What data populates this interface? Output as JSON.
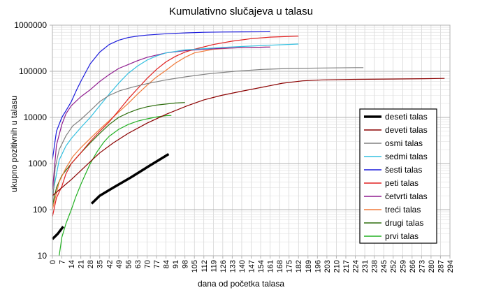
{
  "chart_data": {
    "type": "line",
    "title": "Kumulativno slučajeva u talasu",
    "xlabel": "dana od početka talasa",
    "ylabel": "ukupno pozitivnih u talasu",
    "x_ticks": [
      "0",
      "7",
      "14",
      "21",
      "28",
      "35",
      "42",
      "49",
      "56",
      "63",
      "70",
      "77",
      "84",
      "91",
      "98",
      "105",
      "112",
      "119",
      "126",
      "133",
      "140",
      "147",
      "154",
      "161",
      "168",
      "175",
      "182",
      "189",
      "196",
      "203",
      "210",
      "217",
      "224",
      "231",
      "238",
      "245",
      "252",
      "259",
      "266",
      "273",
      "280",
      "287",
      "294"
    ],
    "xlim": [
      0,
      294
    ],
    "y_scale": "log",
    "ylim": [
      10,
      1000000
    ],
    "y_ticks": [
      "10",
      "100",
      "1000",
      "10000",
      "100000",
      "1000000"
    ],
    "grid": true,
    "legend_position": "right",
    "series": [
      {
        "name": "deseti talas",
        "color": "#000000",
        "width": 3.5,
        "segments": [
          [
            [
              0,
              23
            ],
            [
              4,
              30
            ],
            [
              8,
              43
            ]
          ],
          [
            [
              29,
              135
            ],
            [
              35,
              200
            ],
            [
              45,
              300
            ],
            [
              58,
              500
            ],
            [
              72,
              900
            ],
            [
              86,
              1600
            ]
          ]
        ]
      },
      {
        "name": "deveti talas",
        "color": "#8b0000",
        "width": 1.2,
        "segments": [
          [
            [
              0,
              200
            ],
            [
              7,
              300
            ],
            [
              14,
              450
            ],
            [
              21,
              700
            ],
            [
              28,
              1100
            ],
            [
              35,
              1700
            ],
            [
              45,
              2800
            ],
            [
              56,
              4500
            ],
            [
              70,
              7500
            ],
            [
              85,
              12000
            ],
            [
              100,
              18000
            ],
            [
              112,
              24000
            ],
            [
              125,
              30000
            ],
            [
              140,
              37000
            ],
            [
              155,
              45000
            ],
            [
              170,
              55000
            ],
            [
              185,
              62000
            ],
            [
              200,
              65000
            ],
            [
              225,
              67000
            ],
            [
              250,
              68000
            ],
            [
              275,
              69000
            ],
            [
              290,
              70000
            ]
          ]
        ]
      },
      {
        "name": "osmi talas",
        "color": "#808080",
        "width": 1.2,
        "segments": [
          [
            [
              0,
              120
            ],
            [
              2,
              800
            ],
            [
              5,
              2000
            ],
            [
              10,
              4000
            ],
            [
              15,
              6500
            ],
            [
              21,
              9000
            ],
            [
              28,
              14000
            ],
            [
              35,
              22000
            ],
            [
              42,
              30000
            ],
            [
              50,
              38000
            ],
            [
              60,
              46000
            ],
            [
              70,
              54000
            ],
            [
              84,
              65000
            ],
            [
              100,
              77000
            ],
            [
              115,
              88000
            ],
            [
              135,
              100000
            ],
            [
              155,
              110000
            ],
            [
              175,
              115000
            ],
            [
              200,
              118000
            ],
            [
              225,
              120000
            ],
            [
              230,
              120000
            ]
          ]
        ]
      },
      {
        "name": "sedmi talas",
        "color": "#33c0e0",
        "width": 1.2,
        "segments": [
          [
            [
              0,
              200
            ],
            [
              5,
              1200
            ],
            [
              10,
              2400
            ],
            [
              14,
              3500
            ],
            [
              21,
              6000
            ],
            [
              28,
              10000
            ],
            [
              35,
              18000
            ],
            [
              42,
              32000
            ],
            [
              49,
              55000
            ],
            [
              56,
              90000
            ],
            [
              63,
              130000
            ],
            [
              70,
              175000
            ],
            [
              77,
              215000
            ],
            [
              84,
              250000
            ],
            [
              98,
              290000
            ],
            [
              112,
              310000
            ],
            [
              126,
              330000
            ],
            [
              140,
              345000
            ],
            [
              154,
              360000
            ],
            [
              168,
              375000
            ],
            [
              182,
              390000
            ]
          ]
        ]
      },
      {
        "name": "šesti talas",
        "color": "#1c1cdc",
        "width": 1.2,
        "segments": [
          [
            [
              0,
              1200
            ],
            [
              3,
              5000
            ],
            [
              7,
              10000
            ],
            [
              10,
              14000
            ],
            [
              14,
              22000
            ],
            [
              18,
              40000
            ],
            [
              21,
              60000
            ],
            [
              25,
              100000
            ],
            [
              28,
              145000
            ],
            [
              35,
              260000
            ],
            [
              42,
              380000
            ],
            [
              49,
              470000
            ],
            [
              56,
              540000
            ],
            [
              63,
              580000
            ],
            [
              70,
              610000
            ],
            [
              84,
              650000
            ],
            [
              98,
              680000
            ],
            [
              112,
              700000
            ],
            [
              126,
              710000
            ],
            [
              140,
              715000
            ],
            [
              161,
              720000
            ]
          ]
        ]
      },
      {
        "name": "peti talas",
        "color": "#e02020",
        "width": 1.2,
        "segments": [
          [
            [
              0,
              70
            ],
            [
              3,
              180
            ],
            [
              7,
              320
            ],
            [
              10,
              600
            ],
            [
              14,
              1000
            ],
            [
              21,
              1700
            ],
            [
              28,
              3000
            ],
            [
              35,
              5000
            ],
            [
              42,
              8000
            ],
            [
              49,
              14000
            ],
            [
              56,
              25000
            ],
            [
              63,
              42000
            ],
            [
              70,
              70000
            ],
            [
              77,
              110000
            ],
            [
              84,
              160000
            ],
            [
              91,
              210000
            ],
            [
              98,
              260000
            ],
            [
              105,
              300000
            ],
            [
              119,
              380000
            ],
            [
              133,
              450000
            ],
            [
              147,
              510000
            ],
            [
              161,
              550000
            ],
            [
              175,
              570000
            ],
            [
              182,
              580000
            ]
          ]
        ]
      },
      {
        "name": "četvrti talas",
        "color": "#8f1c8f",
        "width": 1.2,
        "segments": [
          [
            [
              0,
              250
            ],
            [
              3,
              2500
            ],
            [
              7,
              7000
            ],
            [
              10,
              12000
            ],
            [
              14,
              18000
            ],
            [
              21,
              28000
            ],
            [
              28,
              40000
            ],
            [
              35,
              60000
            ],
            [
              42,
              85000
            ],
            [
              49,
              115000
            ],
            [
              56,
              140000
            ],
            [
              63,
              170000
            ],
            [
              70,
              200000
            ],
            [
              77,
              225000
            ],
            [
              84,
              250000
            ],
            [
              98,
              280000
            ],
            [
              112,
              300000
            ],
            [
              126,
              315000
            ],
            [
              140,
              325000
            ],
            [
              154,
              332000
            ],
            [
              161,
              335000
            ]
          ]
        ]
      },
      {
        "name": "treći talas",
        "color": "#f07a3a",
        "width": 1.2,
        "segments": [
          [
            [
              0,
              100
            ],
            [
              5,
              400
            ],
            [
              10,
              800
            ],
            [
              15,
              1400
            ],
            [
              21,
              2200
            ],
            [
              28,
              3500
            ],
            [
              35,
              5500
            ],
            [
              42,
              8500
            ],
            [
              49,
              13000
            ],
            [
              56,
              20000
            ],
            [
              63,
              32000
            ],
            [
              70,
              50000
            ],
            [
              77,
              75000
            ],
            [
              84,
              105000
            ],
            [
              91,
              150000
            ],
            [
              98,
              200000
            ],
            [
              105,
              250000
            ],
            [
              119,
              300000
            ],
            [
              133,
              320000
            ],
            [
              147,
              330000
            ],
            [
              161,
              335000
            ]
          ]
        ]
      },
      {
        "name": "drugi talas",
        "color": "#2e6e0e",
        "width": 1.2,
        "segments": [
          [
            [
              0,
              120
            ],
            [
              3,
              300
            ],
            [
              7,
              550
            ],
            [
              14,
              1000
            ],
            [
              21,
              1700
            ],
            [
              28,
              2800
            ],
            [
              35,
              4500
            ],
            [
              42,
              7000
            ],
            [
              49,
              10000
            ],
            [
              56,
              12500
            ],
            [
              63,
              15000
            ],
            [
              70,
              17000
            ],
            [
              77,
              18500
            ],
            [
              84,
              19500
            ],
            [
              91,
              20500
            ],
            [
              98,
              21000
            ]
          ]
        ]
      },
      {
        "name": "prvi talas",
        "color": "#22b022",
        "width": 1.2,
        "segments": [
          [
            [
              5,
              10
            ],
            [
              7,
              25
            ],
            [
              10,
              50
            ],
            [
              14,
              100
            ],
            [
              17,
              180
            ],
            [
              21,
              350
            ],
            [
              24,
              550
            ],
            [
              28,
              1000
            ],
            [
              33,
              1800
            ],
            [
              38,
              2900
            ],
            [
              42,
              3900
            ],
            [
              49,
              5500
            ],
            [
              56,
              7000
            ],
            [
              63,
              8300
            ],
            [
              70,
              9300
            ],
            [
              77,
              10200
            ],
            [
              84,
              10900
            ],
            [
              88,
              11000
            ]
          ]
        ]
      }
    ]
  }
}
